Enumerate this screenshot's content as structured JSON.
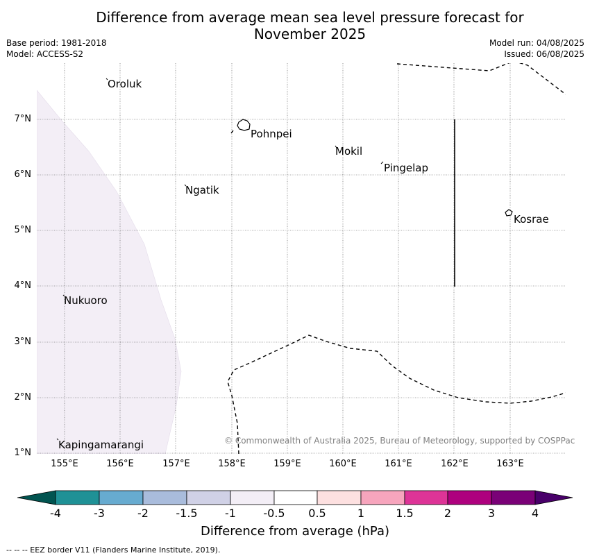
{
  "title_line1": "Difference from average mean sea level pressure forecast for",
  "title_line2": "November 2025",
  "base_period": "Base period: 1981-2018",
  "model": "Model: ACCESS-S2",
  "model_run": "Model run: 04/08/2025",
  "issued": "Issued: 06/08/2025",
  "copyright": "© Commonwealth of Australia 2025, Bureau of Meteorology, supported by COSPPac",
  "places": {
    "oroluk": "Oroluk",
    "pohnpei": "Pohnpei",
    "mokil": "Mokil",
    "pingelap": "Pingelap",
    "ngatik": "Ngatik",
    "kosrae": "Kosrae",
    "nukuoro": "Nukuoro",
    "kapingamarangi": "Kapingamarangi"
  },
  "lat_ticks": [
    "7°N",
    "6°N",
    "5°N",
    "4°N",
    "3°N",
    "2°N",
    "1°N"
  ],
  "lon_ticks": [
    "155°E",
    "156°E",
    "157°E",
    "158°E",
    "159°E",
    "160°E",
    "161°E",
    "162°E",
    "163°E"
  ],
  "colorbar": {
    "label": "Difference from average (hPa)",
    "ticks": [
      "-4",
      "-3",
      "-2",
      "-1.5",
      "-1",
      "-0.5",
      "0.5",
      "1",
      "1.5",
      "2",
      "3",
      "4"
    ],
    "colors": [
      "#1f9196",
      "#67abd0",
      "#a9bcdc",
      "#d0d1e6",
      "#f3eef6",
      "#ffffff",
      "#fde0e0",
      "#f7a5bd",
      "#dd3497",
      "#ae017e",
      "#7a0177"
    ],
    "under_color": "#015450",
    "over_color": "#49006a"
  },
  "footer": "--  --  -- EEZ border V11 (Flanders Marine Institute, 2019)."
}
